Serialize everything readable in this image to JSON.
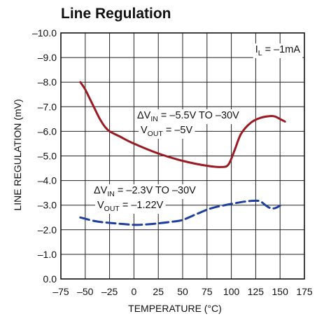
{
  "chart_data": {
    "type": "line",
    "title": "Line Regulation",
    "xlabel": "TEMPERATURE (°C)",
    "ylabel": "LINE REGULATION (mV)",
    "xlim": [
      -75,
      175
    ],
    "ylim": [
      0,
      -10
    ],
    "grid": true,
    "x_ticks": [
      "–75",
      "–50",
      "–25",
      "0",
      "25",
      "50",
      "75",
      "100",
      "125",
      "150",
      "175"
    ],
    "y_ticks": [
      "0.0",
      "–1.0",
      "–2.0",
      "–3.0",
      "–4.0",
      "–5.0",
      "–6.0",
      "–7.0",
      "–8.0",
      "–9.0",
      "–10.0"
    ],
    "annotations": {
      "load": {
        "main": "I",
        "sub": "L",
        "rest": " = –1mA"
      },
      "series1_line1": {
        "main": "ΔV",
        "sub": "IN",
        "rest": " = –5.5V TO –30V"
      },
      "series1_line2": {
        "main": "V",
        "sub": "OUT",
        "rest": " = –5V"
      },
      "series2_line1": {
        "main": "ΔV",
        "sub": "IN",
        "rest": " = –2.3V TO –30V"
      },
      "series2_line2": {
        "main": "V",
        "sub": "OUT",
        "rest": " = –1.22V"
      }
    },
    "series": [
      {
        "color": "#9b1b24",
        "style": "solid",
        "x": [
          -55,
          -50,
          -45,
          -40,
          -35,
          -30,
          -25,
          -15,
          0,
          25,
          50,
          75,
          90,
          97,
          103,
          110,
          120,
          130,
          140,
          145,
          150,
          155
        ],
        "y": [
          -8.0,
          -7.7,
          -7.3,
          -6.9,
          -6.5,
          -6.2,
          -6.0,
          -5.8,
          -5.5,
          -5.1,
          -4.8,
          -4.6,
          -4.55,
          -4.65,
          -5.2,
          -5.9,
          -6.35,
          -6.55,
          -6.62,
          -6.6,
          -6.5,
          -6.4
        ]
      },
      {
        "color": "#1f3f9e",
        "style": "dashed",
        "x": [
          -55,
          -40,
          -25,
          -10,
          0,
          10,
          25,
          40,
          50,
          65,
          80,
          100,
          115,
          125,
          130,
          135,
          140,
          145,
          150
        ],
        "y": [
          -2.5,
          -2.35,
          -2.28,
          -2.23,
          -2.2,
          -2.21,
          -2.26,
          -2.33,
          -2.4,
          -2.65,
          -2.88,
          -3.05,
          -3.15,
          -3.18,
          -3.15,
          -3.0,
          -2.88,
          -2.88,
          -2.98
        ]
      }
    ]
  }
}
